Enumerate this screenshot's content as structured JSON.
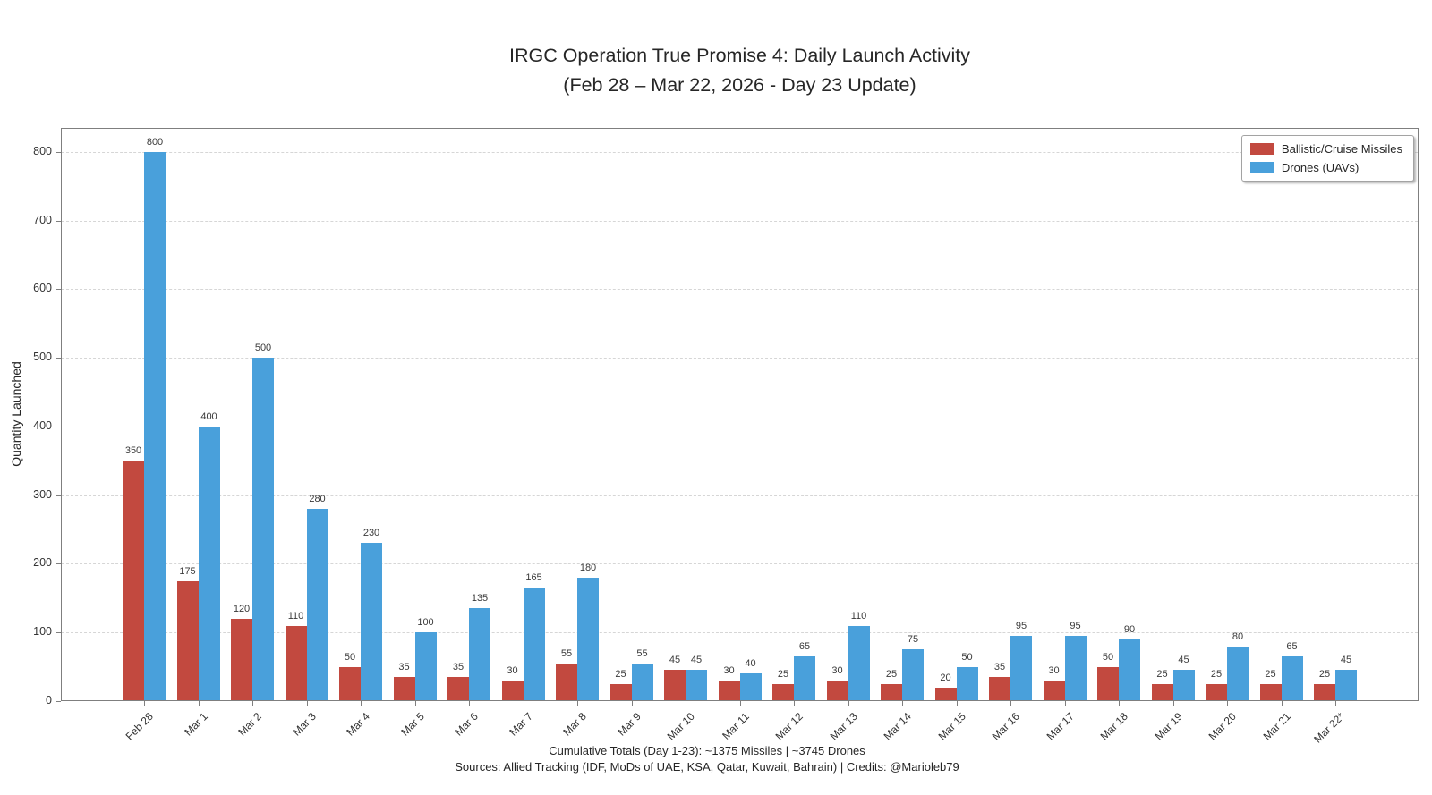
{
  "title": {
    "line1": "IRGC Operation True Promise 4: Daily Launch Activity",
    "line2": "(Feb 28 – Mar 22, 2026 - Day 23 Update)"
  },
  "chart_data": {
    "type": "bar",
    "title": "IRGC Operation True Promise 4: Daily Launch Activity (Feb 28 – Mar 22, 2026 - Day 23 Update)",
    "xlabel": "",
    "ylabel": "Quantity Launched",
    "ylim": [
      0,
      835
    ],
    "yticks": [
      0,
      100,
      200,
      300,
      400,
      500,
      600,
      700,
      800
    ],
    "grid": "horizontal-dashed",
    "legend_position": "upper right",
    "bar_value_labels": true,
    "categories": [
      "Feb 28",
      "Mar 1",
      "Mar 2",
      "Mar 3",
      "Mar 4",
      "Mar 5",
      "Mar 6",
      "Mar 7",
      "Mar 8",
      "Mar 9",
      "Mar 10",
      "Mar 11",
      "Mar 12",
      "Mar 13",
      "Mar 14",
      "Mar 15",
      "Mar 16",
      "Mar 17",
      "Mar 18",
      "Mar 19",
      "Mar 20",
      "Mar 21",
      "Mar 22*"
    ],
    "series": [
      {
        "name": "Ballistic/Cruise Missiles",
        "color": "#c2493f",
        "values": [
          350,
          175,
          120,
          110,
          50,
          35,
          35,
          30,
          55,
          25,
          45,
          30,
          25,
          30,
          25,
          20,
          35,
          30,
          50,
          25,
          25,
          25,
          25
        ]
      },
      {
        "name": "Drones (UAVs)",
        "color": "#49a0db",
        "values": [
          800,
          400,
          500,
          280,
          230,
          100,
          135,
          165,
          180,
          55,
          45,
          40,
          65,
          110,
          75,
          50,
          95,
          95,
          90,
          45,
          80,
          65,
          45
        ]
      }
    ]
  },
  "footer": {
    "line1": "Cumulative Totals (Day 1-23): ~1375 Missiles | ~3745 Drones",
    "line2": "Sources: Allied Tracking (IDF, MoDs of UAE, KSA, Qatar, Kuwait, Bahrain) | Credits: @Marioleb79"
  }
}
